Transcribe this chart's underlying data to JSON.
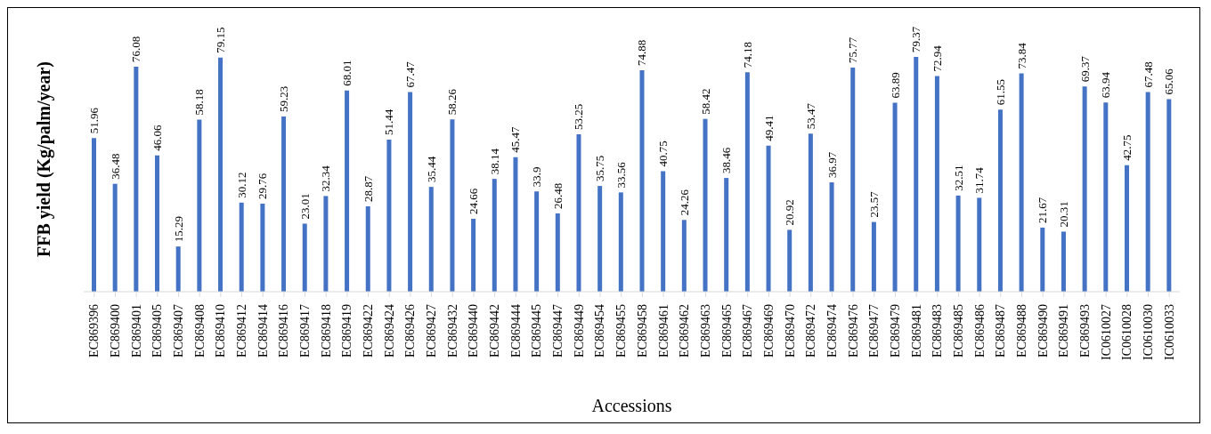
{
  "chart_data": {
    "type": "bar",
    "xlabel": "Accessions",
    "ylabel": "FFB yield (Kg/palm/year)",
    "color": "#4472c4",
    "data_labels": true,
    "categories": [
      "EC869396",
      "EC869400",
      "EC869401",
      "EC869405",
      "EC869407",
      "EC869408",
      "EC869410",
      "EC869412",
      "EC869414",
      "EC869416",
      "EC869417",
      "EC869418",
      "EC869419",
      "EC869422",
      "EC869424",
      "EC869426",
      "EC869427",
      "EC869432",
      "EC869440",
      "EC869442",
      "EC869444",
      "EC869445",
      "EC869447",
      "EC869449",
      "EC869454",
      "EC869455",
      "EC869458",
      "EC869461",
      "EC869462",
      "EC869463",
      "EC869465",
      "EC869467",
      "EC869469",
      "EC869470",
      "EC869472",
      "EC869474",
      "EC869476",
      "EC869477",
      "EC869479",
      "EC869481",
      "EC869483",
      "EC869485",
      "EC869486",
      "EC869487",
      "EC869488",
      "EC869490",
      "EC869491",
      "EC869493",
      "IC0610027",
      "IC0610028",
      "IC0610030",
      "IC0610033"
    ],
    "values": [
      51.96,
      36.48,
      76.08,
      46.06,
      15.29,
      58.18,
      79.15,
      30.12,
      29.76,
      59.23,
      23.01,
      32.34,
      68.01,
      28.87,
      51.44,
      67.47,
      35.44,
      58.26,
      24.66,
      38.14,
      45.47,
      33.9,
      26.48,
      53.25,
      35.75,
      33.56,
      74.88,
      40.75,
      24.26,
      58.42,
      38.46,
      74.18,
      49.41,
      20.92,
      53.47,
      36.97,
      75.77,
      23.57,
      63.89,
      79.37,
      72.94,
      32.51,
      31.74,
      61.55,
      73.84,
      21.67,
      20.31,
      69.37,
      63.94,
      42.75,
      67.48,
      65.06
    ]
  }
}
